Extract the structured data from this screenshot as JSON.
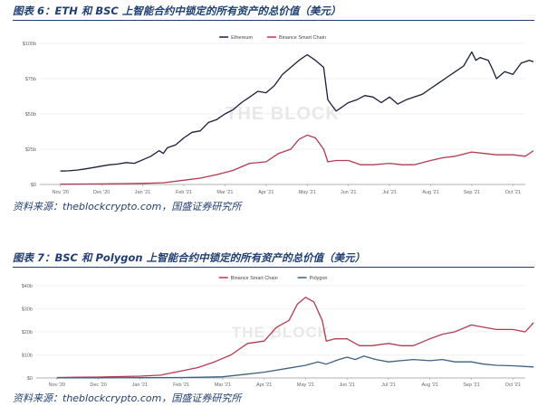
{
  "figures": [
    {
      "title": "图表 6：ETH 和 BSC 上智能合约中锁定的所有资产的总价值（美元）",
      "source": "资料来源：theblockcrypto.com，国盛证券研究所",
      "watermark": "THE BLOCK",
      "chart_data": {
        "type": "line",
        "legend_position": "top-center",
        "grid": true,
        "x": [
          "Nov '20",
          "Dec '20",
          "Jan '21",
          "Feb '21",
          "Mar '21",
          "Apr '21",
          "May '21",
          "Jun '21",
          "Jul '21",
          "Aug '21",
          "Sep '21",
          "Oct '21"
        ],
        "ylim": [
          0,
          100
        ],
        "yticks": [
          "$0",
          "$25b",
          "$50b",
          "$75b",
          "$100b"
        ],
        "series": [
          {
            "name": "Ethereum",
            "color": "#1a1f3a",
            "values": [
              [
                0,
                9.5
              ],
              [
                0.2,
                9.7
              ],
              [
                0.4,
                10.2
              ],
              [
                0.6,
                11
              ],
              [
                0.8,
                12
              ],
              [
                1.0,
                13
              ],
              [
                1.2,
                14
              ],
              [
                1.4,
                14.5
              ],
              [
                1.6,
                15.5
              ],
              [
                1.8,
                15
              ],
              [
                2.0,
                17.5
              ],
              [
                2.2,
                20
              ],
              [
                2.4,
                24
              ],
              [
                2.5,
                22
              ],
              [
                2.6,
                26
              ],
              [
                2.8,
                28
              ],
              [
                3.0,
                33
              ],
              [
                3.2,
                37
              ],
              [
                3.4,
                38
              ],
              [
                3.6,
                44
              ],
              [
                3.8,
                46
              ],
              [
                4.0,
                50
              ],
              [
                4.2,
                53
              ],
              [
                4.4,
                58
              ],
              [
                4.6,
                62
              ],
              [
                4.8,
                66
              ],
              [
                5.0,
                65
              ],
              [
                5.2,
                70
              ],
              [
                5.4,
                78
              ],
              [
                5.6,
                83
              ],
              [
                5.8,
                88
              ],
              [
                6.0,
                92
              ],
              [
                6.2,
                88
              ],
              [
                6.4,
                83
              ],
              [
                6.5,
                60
              ],
              [
                6.7,
                52
              ],
              [
                6.8,
                54
              ],
              [
                7.0,
                58
              ],
              [
                7.2,
                60
              ],
              [
                7.4,
                63
              ],
              [
                7.6,
                62
              ],
              [
                7.8,
                58
              ],
              [
                8.0,
                62
              ],
              [
                8.2,
                57
              ],
              [
                8.4,
                60
              ],
              [
                8.6,
                62
              ],
              [
                8.8,
                64
              ],
              [
                9.0,
                68
              ],
              [
                9.2,
                72
              ],
              [
                9.4,
                76
              ],
              [
                9.6,
                80
              ],
              [
                9.8,
                84
              ],
              [
                10.0,
                94
              ],
              [
                10.1,
                88
              ],
              [
                10.2,
                90
              ],
              [
                10.4,
                88
              ],
              [
                10.5,
                82
              ],
              [
                10.6,
                75
              ],
              [
                10.8,
                80
              ],
              [
                11.0,
                78
              ],
              [
                11.2,
                86
              ],
              [
                11.4,
                88
              ],
              [
                11.5,
                87
              ]
            ]
          },
          {
            "name": "Binance Smart Chain",
            "color": "#b33a50",
            "values": [
              [
                0,
                0.2
              ],
              [
                0.5,
                0.3
              ],
              [
                1.0,
                0.4
              ],
              [
                1.5,
                0.6
              ],
              [
                2.0,
                0.8
              ],
              [
                2.5,
                1.2
              ],
              [
                3.0,
                3
              ],
              [
                3.4,
                4.5
              ],
              [
                3.8,
                7
              ],
              [
                4.2,
                10
              ],
              [
                4.6,
                15
              ],
              [
                5.0,
                16
              ],
              [
                5.3,
                22
              ],
              [
                5.6,
                25
              ],
              [
                5.8,
                32
              ],
              [
                6.0,
                35
              ],
              [
                6.2,
                33
              ],
              [
                6.4,
                25
              ],
              [
                6.5,
                16
              ],
              [
                6.7,
                17
              ],
              [
                7.0,
                17
              ],
              [
                7.3,
                14
              ],
              [
                7.6,
                14
              ],
              [
                8.0,
                15
              ],
              [
                8.3,
                14
              ],
              [
                8.6,
                14
              ],
              [
                9.0,
                17
              ],
              [
                9.3,
                19
              ],
              [
                9.6,
                20
              ],
              [
                10.0,
                23
              ],
              [
                10.3,
                22
              ],
              [
                10.6,
                21
              ],
              [
                11.0,
                21
              ],
              [
                11.3,
                20
              ],
              [
                11.5,
                24
              ]
            ]
          }
        ]
      }
    },
    {
      "title": "图表 7：BSC 和 Polygon 上智能合约中锁定的所有资产的总价值（美元）",
      "source": "资料来源：theblockcrypto.com，国盛证券研究所",
      "watermark": "THE BLOCK",
      "chart_data": {
        "type": "line",
        "legend_position": "top-center",
        "grid": true,
        "x": [
          "Nov '20",
          "Dec '20",
          "Jan '21",
          "Feb '21",
          "Mar '21",
          "Apr '21",
          "May '21",
          "Jun '21",
          "Jul '21",
          "Aug '21",
          "Sep '21",
          "Oct '21"
        ],
        "ylim": [
          0,
          40
        ],
        "yticks": [
          "$0",
          "$10b",
          "$20b",
          "$30b",
          "$40b"
        ],
        "series": [
          {
            "name": "Binance Smart Chain",
            "color": "#b33a50",
            "values": [
              [
                0,
                0.2
              ],
              [
                0.5,
                0.3
              ],
              [
                1.0,
                0.4
              ],
              [
                1.5,
                0.6
              ],
              [
                2.0,
                0.8
              ],
              [
                2.5,
                1.2
              ],
              [
                3.0,
                3
              ],
              [
                3.4,
                4.5
              ],
              [
                3.8,
                7
              ],
              [
                4.2,
                10
              ],
              [
                4.6,
                15
              ],
              [
                5.0,
                16
              ],
              [
                5.3,
                22
              ],
              [
                5.6,
                25
              ],
              [
                5.8,
                32
              ],
              [
                6.0,
                35
              ],
              [
                6.2,
                33
              ],
              [
                6.4,
                25
              ],
              [
                6.5,
                16
              ],
              [
                6.7,
                17
              ],
              [
                7.0,
                17
              ],
              [
                7.3,
                14
              ],
              [
                7.6,
                14
              ],
              [
                8.0,
                15
              ],
              [
                8.3,
                14
              ],
              [
                8.6,
                14
              ],
              [
                9.0,
                17
              ],
              [
                9.3,
                19
              ],
              [
                9.6,
                20
              ],
              [
                10.0,
                23
              ],
              [
                10.3,
                22
              ],
              [
                10.6,
                21
              ],
              [
                11.0,
                21
              ],
              [
                11.3,
                20
              ],
              [
                11.5,
                24
              ]
            ]
          },
          {
            "name": "Polygon",
            "color": "#3d6181",
            "values": [
              [
                0,
                0.05
              ],
              [
                1.0,
                0.08
              ],
              [
                2.0,
                0.1
              ],
              [
                3.0,
                0.2
              ],
              [
                3.5,
                0.3
              ],
              [
                4.0,
                0.5
              ],
              [
                4.5,
                1.5
              ],
              [
                5.0,
                2.5
              ],
              [
                5.5,
                4
              ],
              [
                6.0,
                5.5
              ],
              [
                6.3,
                7
              ],
              [
                6.5,
                6
              ],
              [
                6.8,
                8
              ],
              [
                7.0,
                9
              ],
              [
                7.2,
                8
              ],
              [
                7.4,
                9.5
              ],
              [
                7.7,
                8
              ],
              [
                8.0,
                7
              ],
              [
                8.3,
                7.5
              ],
              [
                8.6,
                8
              ],
              [
                9.0,
                7.5
              ],
              [
                9.3,
                8
              ],
              [
                9.6,
                7
              ],
              [
                10.0,
                7
              ],
              [
                10.3,
                6
              ],
              [
                10.6,
                5.5
              ],
              [
                11.0,
                5.3
              ],
              [
                11.3,
                5
              ],
              [
                11.5,
                4.8
              ]
            ]
          }
        ]
      }
    }
  ]
}
